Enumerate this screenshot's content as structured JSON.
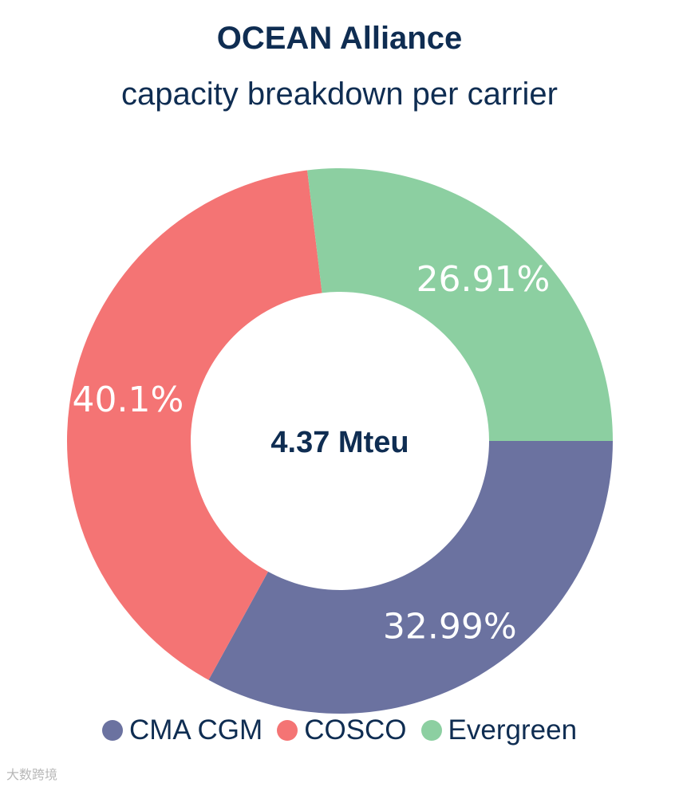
{
  "chart_data": {
    "type": "pie",
    "title": "OCEAN Alliance",
    "subtitle": "capacity breakdown per carrier",
    "center_label": "4.37 Mteu",
    "legend_position": "bottom",
    "slices": [
      {
        "name": "CMA CGM",
        "value": 32.99,
        "label": "32.99%",
        "color": "#6b72a0"
      },
      {
        "name": "COSCO",
        "value": 40.1,
        "label": "40.1%",
        "color": "#f47474"
      },
      {
        "name": "Evergreen",
        "value": 26.91,
        "label": "26.91%",
        "color": "#8ccfa1"
      }
    ]
  },
  "watermark": "大数跨境"
}
